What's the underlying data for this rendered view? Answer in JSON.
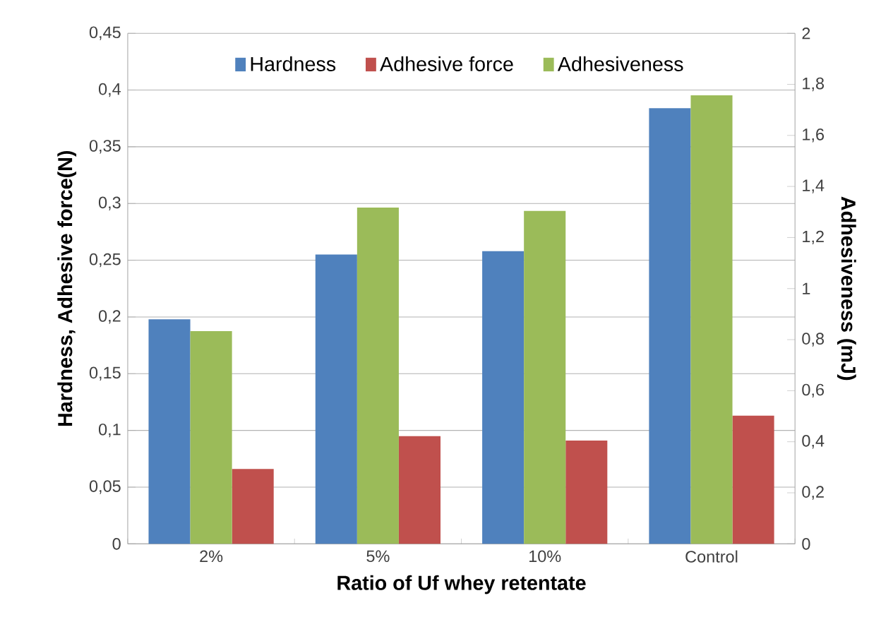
{
  "chart_data": {
    "type": "bar",
    "xlabel": "Ratio of Uf whey retentate",
    "ylabel": "Hardness, Adhesive force(N)",
    "y2label": "Adhesiveness (mJ)",
    "categories": [
      "2%",
      "5%",
      "10%",
      "Control"
    ],
    "series": [
      {
        "name": "Hardness",
        "color": "#4f81bd",
        "values": [
          0.198,
          0.255,
          0.258,
          0.384
        ]
      },
      {
        "name": "Adhesiveness",
        "color": "#9bbb59",
        "axis": "y2",
        "values": [
          0.833,
          1.317,
          1.304,
          1.757
        ]
      },
      {
        "name": "Adhesive force",
        "color": "#c0504d",
        "values": [
          0.066,
          0.095,
          0.091,
          0.113
        ]
      }
    ],
    "ylim": [
      0,
      0.45
    ],
    "yticks": [
      {
        "value": 0,
        "label": "0"
      },
      {
        "value": 0.05,
        "label": "0,05"
      },
      {
        "value": 0.1,
        "label": "0,1"
      },
      {
        "value": 0.15,
        "label": "0,15"
      },
      {
        "value": 0.2,
        "label": "0,2"
      },
      {
        "value": 0.25,
        "label": "0,25"
      },
      {
        "value": 0.3,
        "label": "0,3"
      },
      {
        "value": 0.35,
        "label": "0,35"
      },
      {
        "value": 0.4,
        "label": "0,4"
      },
      {
        "value": 0.45,
        "label": "0,45"
      }
    ],
    "y2lim": [
      0,
      2
    ],
    "y2ticks": [
      {
        "value": 0,
        "label": "0"
      },
      {
        "value": 0.2,
        "label": "0,2"
      },
      {
        "value": 0.4,
        "label": "0,4"
      },
      {
        "value": 0.6,
        "label": "0,6"
      },
      {
        "value": 0.8,
        "label": "0,8"
      },
      {
        "value": 1,
        "label": "1"
      },
      {
        "value": 1.2,
        "label": "1,2"
      },
      {
        "value": 1.4,
        "label": "1,4"
      },
      {
        "value": 1.6,
        "label": "1,6"
      },
      {
        "value": 1.8,
        "label": "1,8"
      },
      {
        "value": 2,
        "label": "2"
      }
    ],
    "grid": "y",
    "legend": "top"
  }
}
